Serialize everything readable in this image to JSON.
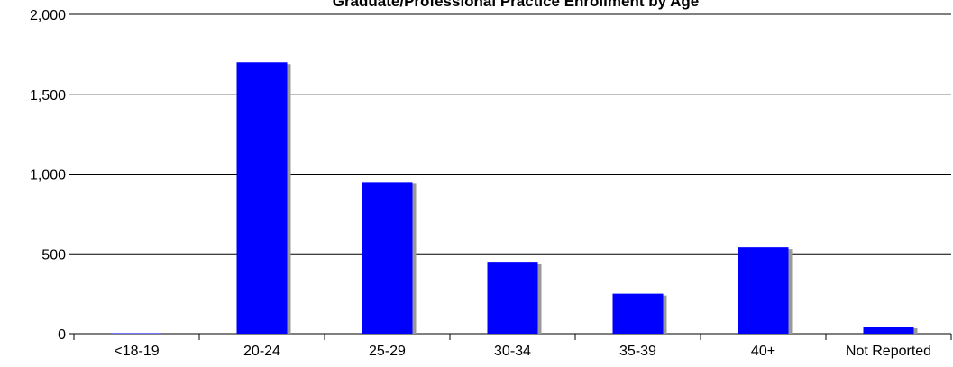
{
  "chart_data": {
    "type": "bar",
    "title": "Graduate/Professional Practice Enrollment by Age",
    "xlabel": "",
    "ylabel": "",
    "categories": [
      "<18-19",
      "20-24",
      "25-29",
      "30-34",
      "35-39",
      "40+",
      "Not Reported"
    ],
    "values": [
      3,
      1700,
      950,
      450,
      250,
      540,
      45
    ],
    "ylim": [
      0,
      2000
    ],
    "yticks": [
      0,
      500,
      1000,
      1500,
      2000
    ],
    "ytick_labels": [
      "0",
      "500",
      "1,000",
      "1,500",
      "2,000"
    ],
    "grid": true,
    "legend": "none",
    "bar_color": "#0000ff",
    "shadow_color": "#9a9a9a"
  }
}
